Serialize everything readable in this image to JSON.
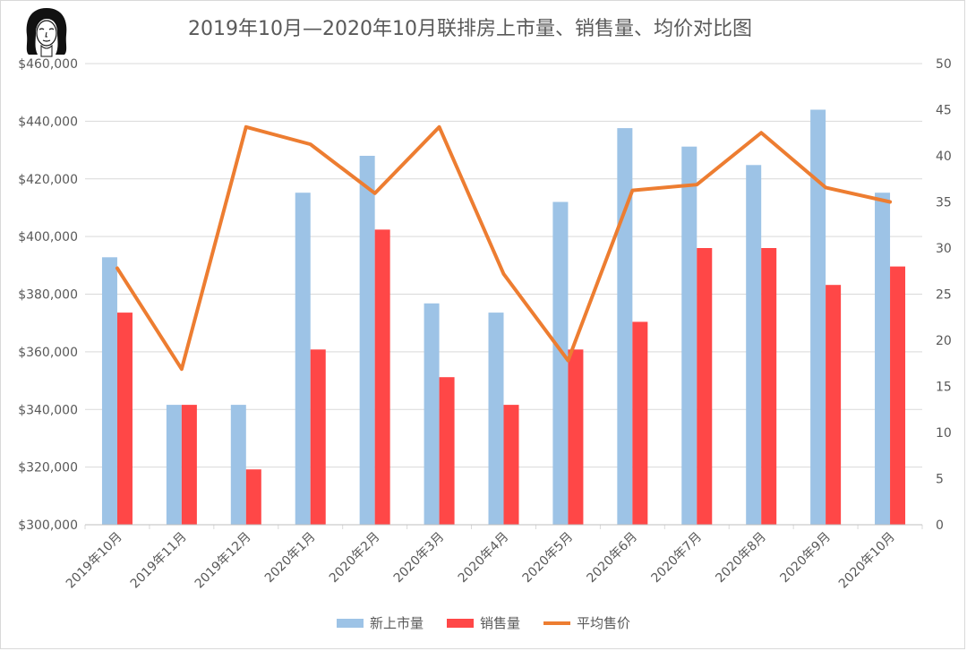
{
  "title": "2019年10月—2020年10月联排房上市量、销售量、均价对比图",
  "chart_data": {
    "type": "bar",
    "title": "2019年10月—2020年10月联排房上市量、销售量、均价对比图",
    "categories": [
      "2019年10月",
      "2019年11月",
      "2019年12月",
      "2020年1月",
      "2020年2月",
      "2020年3月",
      "2020年4月",
      "2020年5月",
      "2020年6月",
      "2020年7月",
      "2020年8月",
      "2020年9月",
      "2020年10月"
    ],
    "left_axis": {
      "ylim": [
        300000,
        460000
      ],
      "ticks": [
        "$300,000",
        "$320,000",
        "$340,000",
        "$360,000",
        "$380,000",
        "$400,000",
        "$420,000",
        "$440,000",
        "$460,000"
      ]
    },
    "right_axis": {
      "ylim": [
        0,
        50
      ],
      "ticks": [
        "0",
        "5",
        "10",
        "15",
        "20",
        "25",
        "30",
        "35",
        "40",
        "45",
        "50"
      ]
    },
    "series": [
      {
        "name": "新上市量",
        "type": "bar",
        "axis": "right",
        "color": "#9dc3e6",
        "values": [
          29,
          13,
          13,
          36,
          40,
          24,
          23,
          35,
          43,
          41,
          39,
          45,
          36
        ]
      },
      {
        "name": "销售量",
        "type": "bar",
        "axis": "right",
        "color": "#ff4747",
        "values": [
          23,
          13,
          6,
          19,
          32,
          16,
          13,
          19,
          22,
          30,
          30,
          26,
          28
        ]
      },
      {
        "name": "平均售价",
        "type": "line",
        "axis": "left",
        "color": "#ed7d31",
        "values": [
          389000,
          354000,
          438000,
          432000,
          415000,
          438000,
          387000,
          357000,
          416000,
          418000,
          436000,
          417000,
          412000
        ]
      }
    ],
    "grid": true,
    "legend": "bottom"
  },
  "legend": [
    {
      "label": "新上市量",
      "color": "#9dc3e6",
      "kind": "bar"
    },
    {
      "label": "销售量",
      "color": "#ff4747",
      "kind": "bar"
    },
    {
      "label": "平均售价",
      "color": "#ed7d31",
      "kind": "line"
    }
  ]
}
